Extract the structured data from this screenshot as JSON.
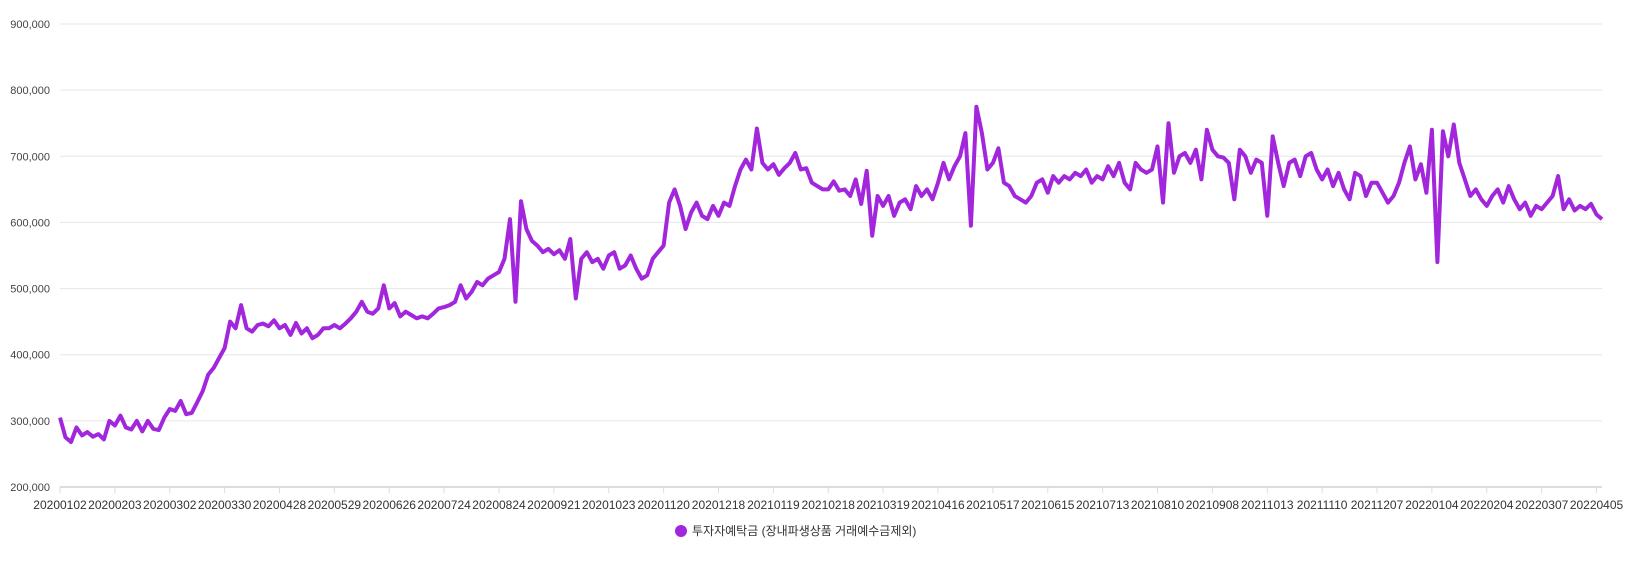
{
  "chart_data": {
    "type": "line",
    "title": "",
    "xlabel": "",
    "ylabel": "",
    "ylim": [
      200000,
      900000
    ],
    "yticks": [
      200000,
      300000,
      400000,
      500000,
      600000,
      700000,
      800000,
      900000
    ],
    "ytick_labels": [
      "200,000",
      "300,000",
      "400,000",
      "500,000",
      "600,000",
      "700,000",
      "800,000",
      "900,000"
    ],
    "x_tick_labels": [
      "20200102",
      "20200203",
      "20200302",
      "20200330",
      "20200428",
      "20200529",
      "20200626",
      "20200724",
      "20200824",
      "20200921",
      "20201023",
      "20201120",
      "20201218",
      "20210119",
      "20210218",
      "20210319",
      "20210416",
      "20210517",
      "20210615",
      "20210713",
      "20210810",
      "20210908",
      "20211013",
      "20211110",
      "20211207",
      "20220104",
      "20220204",
      "20220307",
      "20220405"
    ],
    "grid": "horizontal",
    "legend_position": "bottom",
    "series": [
      {
        "name": "투자자예탁금 (장내파생상품 거래예수금제외)",
        "color": "#a126dc",
        "values_thousands_note_free": true,
        "values": [
          305000,
          275000,
          268000,
          290000,
          278000,
          283000,
          276000,
          280000,
          272000,
          300000,
          293000,
          308000,
          290000,
          287000,
          300000,
          284000,
          300000,
          288000,
          286000,
          305000,
          318000,
          315000,
          330000,
          310000,
          312000,
          328000,
          345000,
          370000,
          380000,
          395000,
          410000,
          450000,
          440000,
          475000,
          440000,
          435000,
          445000,
          447000,
          443000,
          452000,
          440000,
          445000,
          430000,
          448000,
          432000,
          440000,
          425000,
          430000,
          440000,
          440000,
          445000,
          440000,
          447000,
          455000,
          465000,
          480000,
          465000,
          462000,
          470000,
          505000,
          470000,
          478000,
          458000,
          465000,
          460000,
          455000,
          458000,
          455000,
          462000,
          470000,
          472000,
          475000,
          480000,
          505000,
          485000,
          495000,
          510000,
          505000,
          515000,
          520000,
          525000,
          545000,
          605000,
          480000,
          632000,
          590000,
          572000,
          565000,
          555000,
          560000,
          552000,
          558000,
          545000,
          575000,
          485000,
          545000,
          555000,
          540000,
          545000,
          530000,
          550000,
          555000,
          530000,
          535000,
          550000,
          530000,
          515000,
          520000,
          545000,
          555000,
          565000,
          630000,
          650000,
          625000,
          590000,
          615000,
          630000,
          610000,
          605000,
          625000,
          610000,
          630000,
          625000,
          655000,
          680000,
          695000,
          680000,
          742000,
          690000,
          680000,
          688000,
          672000,
          682000,
          690000,
          705000,
          680000,
          682000,
          660000,
          655000,
          650000,
          650000,
          662000,
          648000,
          650000,
          640000,
          665000,
          628000,
          678000,
          580000,
          640000,
          625000,
          640000,
          610000,
          630000,
          635000,
          620000,
          655000,
          640000,
          650000,
          635000,
          660000,
          690000,
          665000,
          685000,
          700000,
          735000,
          595000,
          775000,
          735000,
          680000,
          690000,
          712000,
          660000,
          655000,
          640000,
          635000,
          630000,
          640000,
          660000,
          665000,
          645000,
          670000,
          660000,
          670000,
          665000,
          675000,
          670000,
          680000,
          660000,
          670000,
          665000,
          685000,
          670000,
          690000,
          660000,
          650000,
          690000,
          680000,
          675000,
          680000,
          715000,
          630000,
          750000,
          675000,
          700000,
          705000,
          690000,
          710000,
          665000,
          740000,
          710000,
          700000,
          698000,
          690000,
          635000,
          710000,
          700000,
          675000,
          695000,
          690000,
          610000,
          730000,
          690000,
          655000,
          690000,
          695000,
          670000,
          700000,
          705000,
          680000,
          665000,
          680000,
          655000,
          675000,
          650000,
          635000,
          675000,
          670000,
          640000,
          660000,
          660000,
          645000,
          630000,
          640000,
          660000,
          690000,
          715000,
          665000,
          688000,
          645000,
          740000,
          540000,
          738000,
          700000,
          748000,
          690000,
          665000,
          640000,
          650000,
          635000,
          625000,
          640000,
          650000,
          630000,
          655000,
          635000,
          620000,
          630000,
          610000,
          625000,
          620000,
          630000,
          640000,
          670000,
          620000,
          635000,
          618000,
          625000,
          620000,
          628000,
          612000,
          605000
        ]
      }
    ]
  }
}
